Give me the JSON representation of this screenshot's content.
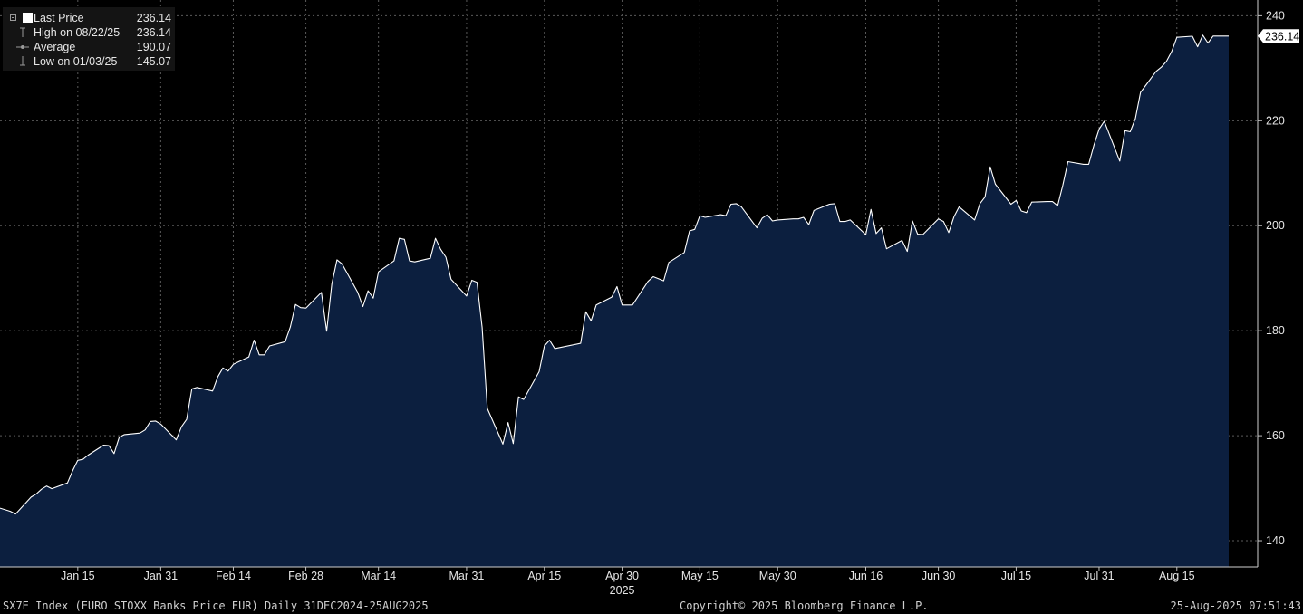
{
  "legend": {
    "last_price": {
      "label": "Last Price",
      "value": "236.14"
    },
    "high": {
      "label": "High on 08/22/25",
      "value": "236.14"
    },
    "average": {
      "label": "Average",
      "value": "190.07"
    },
    "low": {
      "label": "Low on 01/03/25",
      "value": "145.07"
    }
  },
  "footer": {
    "left": "SX7E Index (EURO STOXX Banks Price EUR)  Daily 31DEC2024-25AUG2025",
    "center": "Copyright© 2025 Bloomberg Finance L.P.",
    "right": "25-Aug-2025 07:51:43"
  },
  "colors": {
    "background": "#000000",
    "area_fill": "#0c1f3f",
    "line": "#ffffff",
    "grid": "#5a5a5a",
    "text": "#e6e6e6"
  },
  "chart_data": {
    "type": "area",
    "ylim": [
      135,
      243
    ],
    "grid": true,
    "y_ticks": [
      140,
      160,
      180,
      200,
      220,
      240
    ],
    "x_ticks": [
      "Jan 15",
      "Jan 31",
      "Feb 14",
      "Feb 28",
      "Mar 14",
      "Mar 31",
      "Apr 15",
      "Apr 30",
      "May 15",
      "May 30",
      "Jun 16",
      "Jun 30",
      "Jul 15",
      "Jul 31",
      "Aug 15"
    ],
    "x_tick_dates": [
      "2025-01-15",
      "2025-01-31",
      "2025-02-14",
      "2025-02-28",
      "2025-03-14",
      "2025-03-31",
      "2025-04-15",
      "2025-04-30",
      "2025-05-15",
      "2025-05-30",
      "2025-06-16",
      "2025-06-30",
      "2025-07-15",
      "2025-07-31",
      "2025-08-15"
    ],
    "year_label": "2025",
    "last_value_label": "236.14",
    "series": [
      {
        "values": [
          [
            "2024-12-31",
            146.2
          ],
          [
            "2025-01-02",
            145.6
          ],
          [
            "2025-01-03",
            145.07
          ],
          [
            "2025-01-06",
            148.3
          ],
          [
            "2025-01-07",
            148.9
          ],
          [
            "2025-01-08",
            149.8
          ],
          [
            "2025-01-09",
            150.4
          ],
          [
            "2025-01-10",
            149.9
          ],
          [
            "2025-01-13",
            151.0
          ],
          [
            "2025-01-14",
            153.3
          ],
          [
            "2025-01-15",
            155.3
          ],
          [
            "2025-01-16",
            155.5
          ],
          [
            "2025-01-17",
            156.3
          ],
          [
            "2025-01-20",
            158.2
          ],
          [
            "2025-01-21",
            158.1
          ],
          [
            "2025-01-22",
            156.6
          ],
          [
            "2025-01-23",
            159.7
          ],
          [
            "2025-01-24",
            160.2
          ],
          [
            "2025-01-27",
            160.5
          ],
          [
            "2025-01-28",
            161.1
          ],
          [
            "2025-01-29",
            162.7
          ],
          [
            "2025-01-30",
            162.8
          ],
          [
            "2025-01-31",
            162.2
          ],
          [
            "2025-02-03",
            159.2
          ],
          [
            "2025-02-04",
            161.7
          ],
          [
            "2025-02-05",
            163.1
          ],
          [
            "2025-02-06",
            168.9
          ],
          [
            "2025-02-07",
            169.2
          ],
          [
            "2025-02-10",
            168.5
          ],
          [
            "2025-02-11",
            171.2
          ],
          [
            "2025-02-12",
            172.9
          ],
          [
            "2025-02-13",
            172.3
          ],
          [
            "2025-02-14",
            173.6
          ],
          [
            "2025-02-17",
            175.0
          ],
          [
            "2025-02-18",
            178.2
          ],
          [
            "2025-02-19",
            175.4
          ],
          [
            "2025-02-20",
            175.4
          ],
          [
            "2025-02-21",
            177.1
          ],
          [
            "2025-02-24",
            177.9
          ],
          [
            "2025-02-25",
            180.7
          ],
          [
            "2025-02-26",
            185.0
          ],
          [
            "2025-02-27",
            184.4
          ],
          [
            "2025-02-28",
            184.3
          ],
          [
            "2025-03-03",
            187.3
          ],
          [
            "2025-03-04",
            179.9
          ],
          [
            "2025-03-05",
            188.9
          ],
          [
            "2025-03-06",
            193.5
          ],
          [
            "2025-03-07",
            192.7
          ],
          [
            "2025-03-10",
            187.3
          ],
          [
            "2025-03-11",
            184.6
          ],
          [
            "2025-03-12",
            187.6
          ],
          [
            "2025-03-13",
            186.2
          ],
          [
            "2025-03-14",
            191.2
          ],
          [
            "2025-03-17",
            193.3
          ],
          [
            "2025-03-18",
            197.6
          ],
          [
            "2025-03-19",
            197.4
          ],
          [
            "2025-03-20",
            193.3
          ],
          [
            "2025-03-21",
            193.1
          ],
          [
            "2025-03-24",
            193.8
          ],
          [
            "2025-03-25",
            197.6
          ],
          [
            "2025-03-26",
            195.5
          ],
          [
            "2025-03-27",
            194.0
          ],
          [
            "2025-03-28",
            189.8
          ],
          [
            "2025-03-31",
            186.6
          ],
          [
            "2025-04-01",
            189.6
          ],
          [
            "2025-04-02",
            189.2
          ],
          [
            "2025-04-03",
            180.6
          ],
          [
            "2025-04-04",
            165.2
          ],
          [
            "2025-04-07",
            158.4
          ],
          [
            "2025-04-08",
            162.5
          ],
          [
            "2025-04-09",
            158.5
          ],
          [
            "2025-04-10",
            167.4
          ],
          [
            "2025-04-11",
            166.9
          ],
          [
            "2025-04-14",
            172.2
          ],
          [
            "2025-04-15",
            177.1
          ],
          [
            "2025-04-16",
            178.2
          ],
          [
            "2025-04-17",
            176.6
          ],
          [
            "2025-04-22",
            177.6
          ],
          [
            "2025-04-23",
            183.6
          ],
          [
            "2025-04-24",
            181.9
          ],
          [
            "2025-04-25",
            184.9
          ],
          [
            "2025-04-28",
            186.4
          ],
          [
            "2025-04-29",
            188.4
          ],
          [
            "2025-04-30",
            184.9
          ],
          [
            "2025-05-02",
            184.9
          ],
          [
            "2025-05-05",
            189.4
          ],
          [
            "2025-05-06",
            190.3
          ],
          [
            "2025-05-07",
            189.9
          ],
          [
            "2025-05-08",
            189.5
          ],
          [
            "2025-05-09",
            193.0
          ],
          [
            "2025-05-12",
            194.9
          ],
          [
            "2025-05-13",
            199.0
          ],
          [
            "2025-05-14",
            199.3
          ],
          [
            "2025-05-15",
            201.9
          ],
          [
            "2025-05-16",
            201.6
          ],
          [
            "2025-05-19",
            202.1
          ],
          [
            "2025-05-20",
            201.9
          ],
          [
            "2025-05-21",
            204.1
          ],
          [
            "2025-05-22",
            204.2
          ],
          [
            "2025-05-23",
            203.6
          ],
          [
            "2025-05-26",
            199.6
          ],
          [
            "2025-05-27",
            201.4
          ],
          [
            "2025-05-28",
            202.1
          ],
          [
            "2025-05-29",
            200.9
          ],
          [
            "2025-05-30",
            201.1
          ],
          [
            "2025-06-02",
            201.3
          ],
          [
            "2025-06-03",
            201.3
          ],
          [
            "2025-06-04",
            201.6
          ],
          [
            "2025-06-05",
            200.2
          ],
          [
            "2025-06-06",
            202.9
          ],
          [
            "2025-06-09",
            204.1
          ],
          [
            "2025-06-10",
            204.2
          ],
          [
            "2025-06-11",
            200.8
          ],
          [
            "2025-06-12",
            200.8
          ],
          [
            "2025-06-13",
            201.1
          ],
          [
            "2025-06-16",
            198.3
          ],
          [
            "2025-06-17",
            203.1
          ],
          [
            "2025-06-18",
            198.5
          ],
          [
            "2025-06-19",
            199.6
          ],
          [
            "2025-06-20",
            195.6
          ],
          [
            "2025-06-23",
            197.2
          ],
          [
            "2025-06-24",
            195.1
          ],
          [
            "2025-06-25",
            200.9
          ],
          [
            "2025-06-26",
            198.4
          ],
          [
            "2025-06-27",
            198.3
          ],
          [
            "2025-06-30",
            201.3
          ],
          [
            "2025-07-01",
            200.8
          ],
          [
            "2025-07-02",
            198.7
          ],
          [
            "2025-07-03",
            201.7
          ],
          [
            "2025-07-04",
            203.6
          ],
          [
            "2025-07-07",
            201.1
          ],
          [
            "2025-07-08",
            204.2
          ],
          [
            "2025-07-09",
            205.5
          ],
          [
            "2025-07-10",
            211.2
          ],
          [
            "2025-07-11",
            207.9
          ],
          [
            "2025-07-14",
            204.1
          ],
          [
            "2025-07-15",
            204.8
          ],
          [
            "2025-07-16",
            202.8
          ],
          [
            "2025-07-17",
            202.5
          ],
          [
            "2025-07-18",
            204.5
          ],
          [
            "2025-07-21",
            204.6
          ],
          [
            "2025-07-22",
            204.6
          ],
          [
            "2025-07-23",
            203.8
          ],
          [
            "2025-07-24",
            207.7
          ],
          [
            "2025-07-25",
            212.2
          ],
          [
            "2025-07-28",
            211.7
          ],
          [
            "2025-07-29",
            211.7
          ],
          [
            "2025-07-30",
            215.3
          ],
          [
            "2025-07-31",
            218.4
          ],
          [
            "2025-08-01",
            219.9
          ],
          [
            "2025-08-04",
            212.3
          ],
          [
            "2025-08-05",
            218.1
          ],
          [
            "2025-08-06",
            217.9
          ],
          [
            "2025-08-07",
            220.4
          ],
          [
            "2025-08-08",
            225.4
          ],
          [
            "2025-08-11",
            229.4
          ],
          [
            "2025-08-12",
            230.2
          ],
          [
            "2025-08-13",
            231.3
          ],
          [
            "2025-08-14",
            233.2
          ],
          [
            "2025-08-15",
            235.9
          ],
          [
            "2025-08-18",
            236.1
          ],
          [
            "2025-08-19",
            234.1
          ],
          [
            "2025-08-20",
            236.3
          ],
          [
            "2025-08-21",
            234.8
          ],
          [
            "2025-08-22",
            236.14
          ],
          [
            "2025-08-25",
            236.14
          ]
        ]
      }
    ]
  }
}
